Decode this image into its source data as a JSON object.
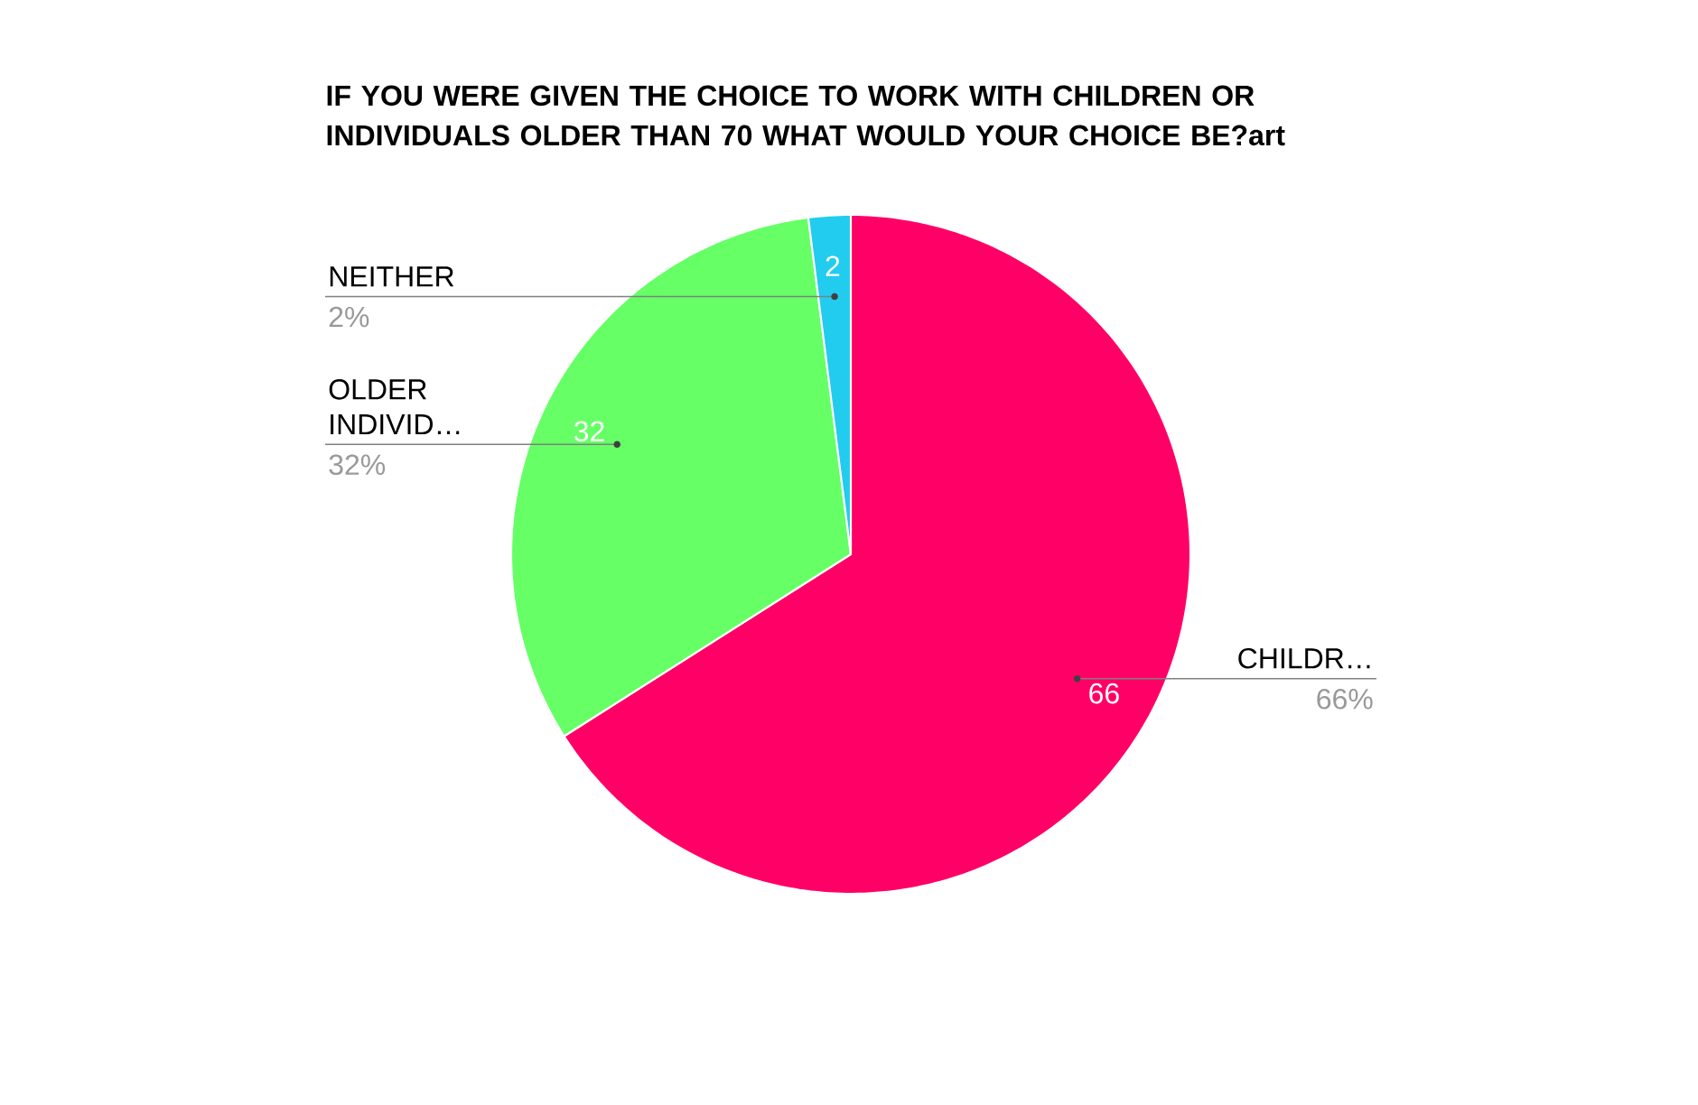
{
  "chart_data": {
    "type": "pie",
    "title": "IF YOU WERE GIVEN THE CHOICE TO WORK WITH CHILDREN OR INDIVIDUALS OLDER THAN 70 WHAT WOULD YOUR CHOICE BE?art",
    "categories": [
      "CHILDR…",
      "OLDER INDIVID…",
      "NEITHER"
    ],
    "values": [
      66,
      32,
      2
    ],
    "value_labels": [
      "66",
      "32",
      "2"
    ],
    "annotations": [
      "66%",
      "32%",
      "2%"
    ],
    "colors": [
      "#ff0066",
      "#66ff66",
      "#22ccee"
    ]
  }
}
